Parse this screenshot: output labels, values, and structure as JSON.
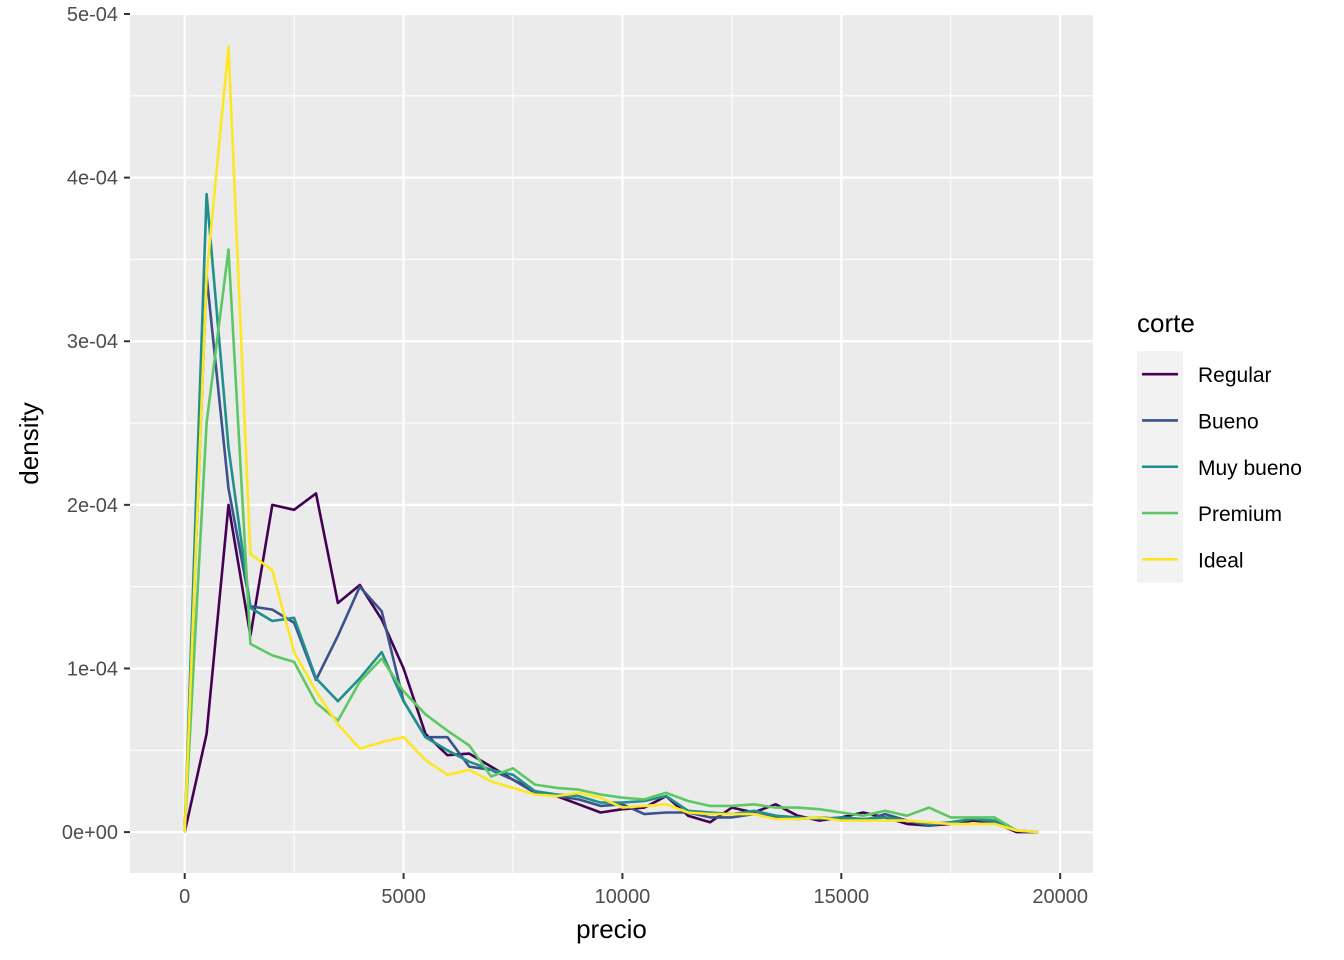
{
  "chart_data": {
    "type": "line",
    "xlabel": "precio",
    "ylabel": "density",
    "xlim": [
      -1250,
      20750
    ],
    "ylim": [
      -2.5e-05,
      0.0005
    ],
    "x_ticks": [
      0,
      5000,
      10000,
      15000,
      20000
    ],
    "x_tick_labels": [
      "0",
      "5000",
      "10000",
      "15000",
      "20000"
    ],
    "y_ticks": [
      0,
      0.0001,
      0.0002,
      0.0003,
      0.0004,
      0.0005
    ],
    "y_tick_labels": [
      "0e+00",
      "1e-04",
      "2e-04",
      "3e-04",
      "4e-04",
      "5e-04"
    ],
    "grid": true,
    "legend": {
      "title": "corte",
      "position": "right"
    },
    "x": [
      0,
      500,
      1000,
      1500,
      2000,
      2500,
      3000,
      3500,
      4000,
      4500,
      5000,
      5500,
      6000,
      6500,
      7000,
      7500,
      8000,
      8500,
      9000,
      9500,
      10000,
      10500,
      11000,
      11500,
      12000,
      12500,
      13000,
      13500,
      14000,
      14500,
      15000,
      15500,
      16000,
      16500,
      17000,
      17500,
      18000,
      18500,
      19000,
      19500
    ],
    "series": [
      {
        "name": "Regular",
        "color": "#440154",
        "values": [
          0,
          6e-05,
          0.0002,
          0.00012,
          0.0002,
          0.000197,
          0.000207,
          0.00014,
          0.000151,
          0.00013,
          0.0001,
          6e-05,
          4.7e-05,
          4.8e-05,
          4e-05,
          3.2e-05,
          2.5e-05,
          2.2e-05,
          1.7e-05,
          1.2e-05,
          1.4e-05,
          1.5e-05,
          2.2e-05,
          1e-05,
          6e-06,
          1.5e-05,
          1.2e-05,
          1.7e-05,
          1e-05,
          7e-06,
          9e-06,
          1.2e-05,
          9e-06,
          5e-06,
          4e-06,
          5e-06,
          7e-06,
          6e-06,
          0,
          0
        ]
      },
      {
        "name": "Bueno",
        "color": "#3b528b",
        "values": [
          0,
          0.00034,
          0.00021,
          0.000138,
          0.000136,
          0.000128,
          9.3e-05,
          0.00012,
          0.00015,
          0.000135,
          8e-05,
          5.8e-05,
          5.8e-05,
          4e-05,
          3.8e-05,
          3.2e-05,
          2.4e-05,
          2.2e-05,
          2e-05,
          1.6e-05,
          1.7e-05,
          1.1e-05,
          1.2e-05,
          1.2e-05,
          9e-06,
          9e-06,
          1.1e-05,
          9e-06,
          8e-06,
          9e-06,
          8e-06,
          7e-06,
          1.1e-05,
          7e-06,
          4e-06,
          6e-06,
          8e-06,
          6e-06,
          1e-06,
          0
        ]
      },
      {
        "name": "Muy bueno",
        "color": "#21908c",
        "values": [
          0,
          0.00039,
          0.000235,
          0.000137,
          0.000129,
          0.000131,
          9.4e-05,
          8e-05,
          9.4e-05,
          0.00011,
          8e-05,
          5.8e-05,
          5e-05,
          4.3e-05,
          3.8e-05,
          3.5e-05,
          2.5e-05,
          2.3e-05,
          2.2e-05,
          1.8e-05,
          1.8e-05,
          1.9e-05,
          2.2e-05,
          1.3e-05,
          1.2e-05,
          1.1e-05,
          1.3e-05,
          1e-05,
          9e-06,
          8e-06,
          9e-06,
          8e-06,
          9e-06,
          7e-06,
          5e-06,
          6e-06,
          8e-06,
          7e-06,
          1e-06,
          0
        ]
      },
      {
        "name": "Premium",
        "color": "#5dc863",
        "values": [
          0,
          0.00025,
          0.000356,
          0.000115,
          0.000108,
          0.000104,
          7.9e-05,
          6.8e-05,
          9.2e-05,
          0.000106,
          8.6e-05,
          7.2e-05,
          6.2e-05,
          5.3e-05,
          3.4e-05,
          3.9e-05,
          2.9e-05,
          2.7e-05,
          2.6e-05,
          2.3e-05,
          2.1e-05,
          2e-05,
          2.4e-05,
          1.9e-05,
          1.6e-05,
          1.6e-05,
          1.7e-05,
          1.5e-05,
          1.5e-05,
          1.4e-05,
          1.2e-05,
          1e-05,
          1.3e-05,
          1e-05,
          1.5e-05,
          9e-06,
          9e-06,
          9e-06,
          1e-06,
          0
        ]
      },
      {
        "name": "Ideal",
        "color": "#fde725",
        "values": [
          0,
          0.00034,
          0.00048,
          0.00017,
          0.00016,
          0.00011,
          8.6e-05,
          6.6e-05,
          5.1e-05,
          5.5e-05,
          5.8e-05,
          4.4e-05,
          3.5e-05,
          3.8e-05,
          3.1e-05,
          2.7e-05,
          2.3e-05,
          2.2e-05,
          2.4e-05,
          2.1e-05,
          1.5e-05,
          1.6e-05,
          1.7e-05,
          1.2e-05,
          1.1e-05,
          1.1e-05,
          1.1e-05,
          8e-06,
          8e-06,
          9e-06,
          7e-06,
          7e-06,
          7e-06,
          7e-06,
          6e-06,
          5e-06,
          5e-06,
          5e-06,
          1e-06,
          0
        ]
      }
    ]
  }
}
